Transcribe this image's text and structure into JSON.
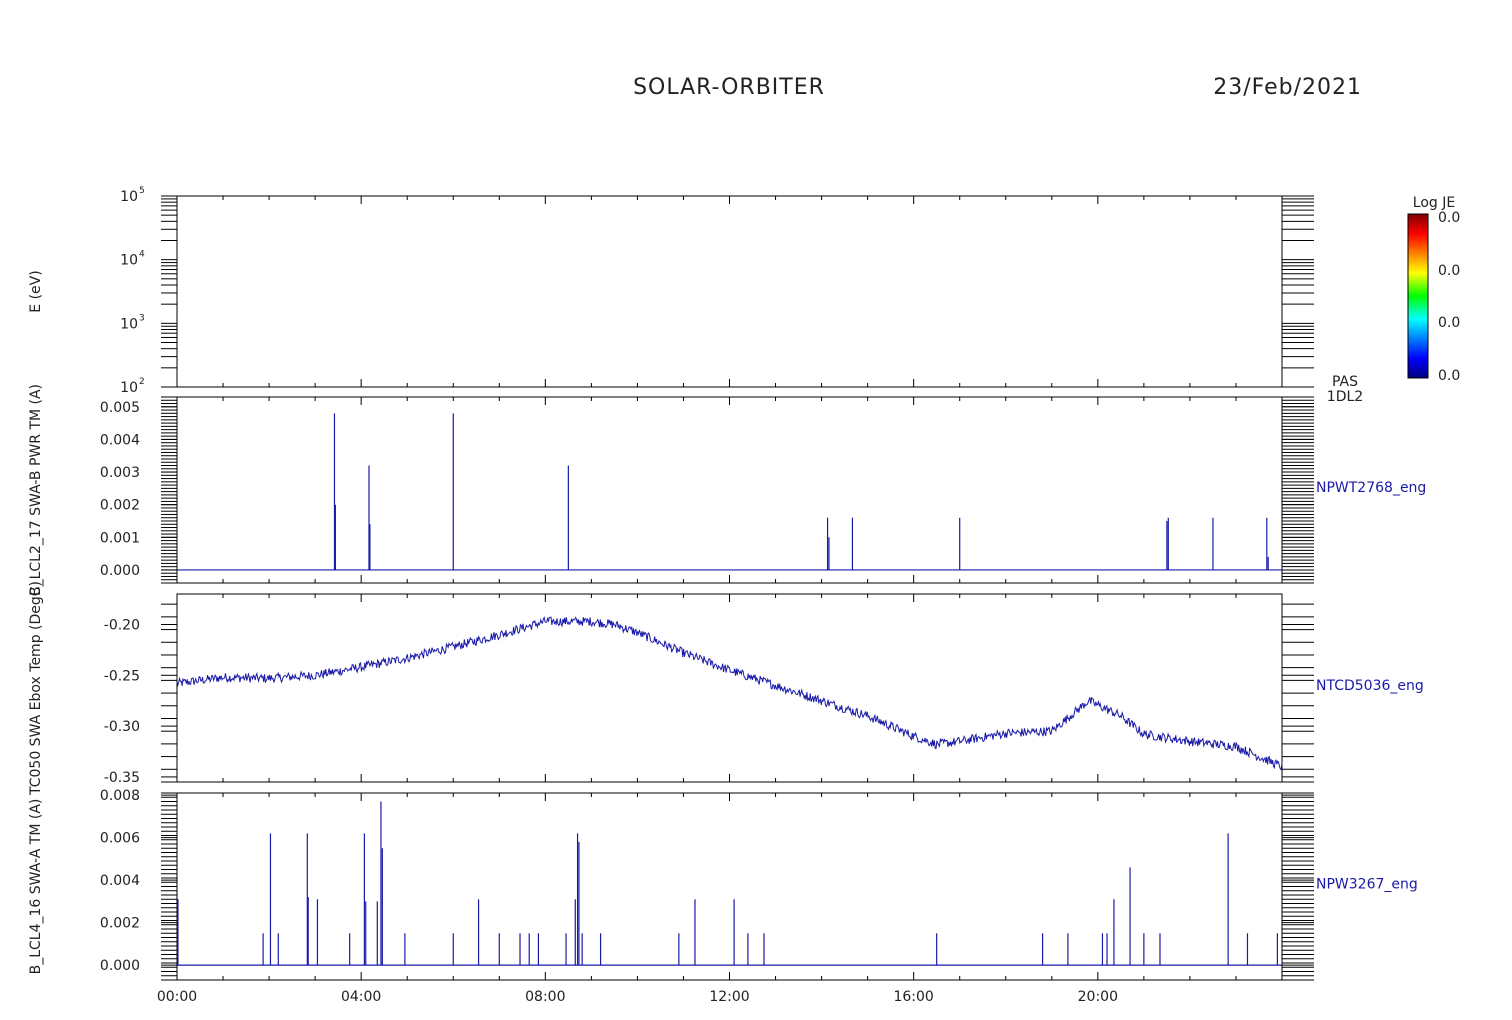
{
  "header": {
    "title": "SOLAR-ORBITER",
    "date": "23/Feb/2021"
  },
  "colorbar": {
    "title": "Log JE",
    "labels": [
      "0.0",
      "0.0",
      "0.0",
      "0.0"
    ]
  },
  "chart_data": [
    {
      "type": "heatmap",
      "ylabel": "E (eV)",
      "yscale": "log",
      "ylim": [
        100,
        100000
      ],
      "yticks": [
        {
          "base": "10",
          "exp": "5"
        },
        {
          "base": "10",
          "exp": "4"
        },
        {
          "base": "10",
          "exp": "3"
        },
        {
          "base": "10",
          "exp": "2"
        }
      ],
      "right_label": [
        "PAS",
        "1DL2"
      ],
      "values": []
    },
    {
      "type": "line",
      "ylabel": "B_LCL2_17 SWA-B PWR TM (A)",
      "series_name": "NPWT2768_eng",
      "ylim": [
        -0.0004,
        0.0053
      ],
      "yticks": [
        "0.005",
        "0.004",
        "0.003",
        "0.002",
        "0.001",
        "0.000"
      ],
      "ytick_values": [
        0.005,
        0.004,
        0.003,
        0.002,
        0.001,
        0.0
      ],
      "spikes": [
        {
          "t": 3.42,
          "v": 0.0048
        },
        {
          "t": 3.44,
          "v": 0.002
        },
        {
          "t": 4.17,
          "v": 0.0032
        },
        {
          "t": 4.19,
          "v": 0.0014
        },
        {
          "t": 6.0,
          "v": 0.0048
        },
        {
          "t": 8.5,
          "v": 0.0032
        },
        {
          "t": 14.13,
          "v": 0.0016
        },
        {
          "t": 14.16,
          "v": 0.001
        },
        {
          "t": 14.67,
          "v": 0.0016
        },
        {
          "t": 17.0,
          "v": 0.0016
        },
        {
          "t": 21.5,
          "v": 0.0015
        },
        {
          "t": 21.53,
          "v": 0.0016
        },
        {
          "t": 22.5,
          "v": 0.0016
        },
        {
          "t": 23.67,
          "v": 0.0016
        },
        {
          "t": 23.7,
          "v": 0.0004
        }
      ]
    },
    {
      "type": "line",
      "ylabel": "TC050 SWA Ebox Temp (DegC)",
      "series_name": "NTCD5036_eng",
      "ylim": [
        -0.355,
        -0.17
      ],
      "yticks": [
        "-0.20",
        "-0.25",
        "-0.30",
        "-0.35"
      ],
      "ytick_values": [
        -0.2,
        -0.25,
        -0.3,
        -0.35
      ],
      "x": [
        0,
        1,
        2,
        3,
        4,
        5,
        6,
        7,
        8,
        9,
        9.5,
        10,
        10.5,
        11,
        12,
        13,
        14,
        15,
        16,
        16.5,
        17,
        18,
        19,
        19.8,
        20.5,
        21,
        22,
        23,
        24
      ],
      "y": [
        -0.258,
        -0.252,
        -0.253,
        -0.25,
        -0.242,
        -0.233,
        -0.222,
        -0.21,
        -0.197,
        -0.197,
        -0.2,
        -0.208,
        -0.218,
        -0.228,
        -0.245,
        -0.26,
        -0.275,
        -0.29,
        -0.31,
        -0.318,
        -0.315,
        -0.307,
        -0.305,
        -0.275,
        -0.29,
        -0.308,
        -0.315,
        -0.32,
        -0.34
      ]
    },
    {
      "type": "line",
      "ylabel": "B_LCL4_16 SWA-A TM (A)",
      "series_name": "NPW3267_eng",
      "ylim": [
        -0.0007,
        0.0081
      ],
      "yticks": [
        "0.008",
        "0.006",
        "0.004",
        "0.002",
        "0.000"
      ],
      "ytick_values": [
        0.008,
        0.006,
        0.004,
        0.002,
        0.0
      ],
      "xticks": [
        "00:00",
        "04:00",
        "08:00",
        "12:00",
        "16:00",
        "20:00"
      ],
      "xlim": [
        0,
        24
      ],
      "spikes": [
        {
          "t": 0.02,
          "v": 0.0031
        },
        {
          "t": 1.87,
          "v": 0.0015
        },
        {
          "t": 2.03,
          "v": 0.0062
        },
        {
          "t": 2.2,
          "v": 0.0015
        },
        {
          "t": 2.83,
          "v": 0.0062
        },
        {
          "t": 2.85,
          "v": 0.0032
        },
        {
          "t": 3.05,
          "v": 0.0031
        },
        {
          "t": 3.75,
          "v": 0.0015
        },
        {
          "t": 4.07,
          "v": 0.0062
        },
        {
          "t": 4.1,
          "v": 0.003
        },
        {
          "t": 4.35,
          "v": 0.003
        },
        {
          "t": 4.43,
          "v": 0.0077
        },
        {
          "t": 4.46,
          "v": 0.0055
        },
        {
          "t": 4.95,
          "v": 0.0015
        },
        {
          "t": 6.0,
          "v": 0.0015
        },
        {
          "t": 6.55,
          "v": 0.0031
        },
        {
          "t": 7.0,
          "v": 0.0015
        },
        {
          "t": 7.45,
          "v": 0.0015
        },
        {
          "t": 7.65,
          "v": 0.0015
        },
        {
          "t": 7.85,
          "v": 0.0015
        },
        {
          "t": 8.45,
          "v": 0.0015
        },
        {
          "t": 8.65,
          "v": 0.0031
        },
        {
          "t": 8.7,
          "v": 0.0062
        },
        {
          "t": 8.73,
          "v": 0.0058
        },
        {
          "t": 8.8,
          "v": 0.0015
        },
        {
          "t": 9.2,
          "v": 0.0015
        },
        {
          "t": 10.9,
          "v": 0.0015
        },
        {
          "t": 11.25,
          "v": 0.0031
        },
        {
          "t": 12.1,
          "v": 0.0031
        },
        {
          "t": 12.4,
          "v": 0.0015
        },
        {
          "t": 12.75,
          "v": 0.0015
        },
        {
          "t": 16.5,
          "v": 0.0015
        },
        {
          "t": 18.8,
          "v": 0.0015
        },
        {
          "t": 19.35,
          "v": 0.0015
        },
        {
          "t": 20.1,
          "v": 0.0015
        },
        {
          "t": 20.2,
          "v": 0.0015
        },
        {
          "t": 20.35,
          "v": 0.0031
        },
        {
          "t": 20.7,
          "v": 0.0046
        },
        {
          "t": 21.0,
          "v": 0.0015
        },
        {
          "t": 21.35,
          "v": 0.0015
        },
        {
          "t": 22.83,
          "v": 0.0062
        },
        {
          "t": 23.25,
          "v": 0.0015
        },
        {
          "t": 23.9,
          "v": 0.0015
        }
      ]
    }
  ]
}
